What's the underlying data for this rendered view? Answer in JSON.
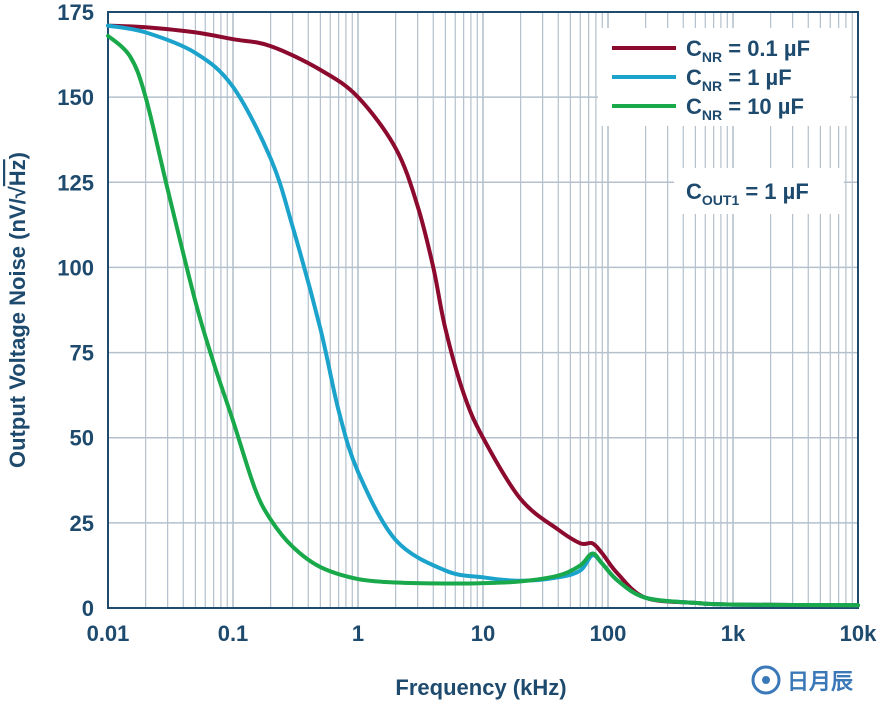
{
  "chart_data": {
    "type": "line",
    "title": "",
    "xlabel": "Frequency (kHz)",
    "ylabel_parts": {
      "main": "Output Voltage Noise (nV/",
      "radical": "√",
      "radicand": "Hz",
      "close": ")"
    },
    "xscale": "log",
    "xlim": [
      0.01,
      10000
    ],
    "ylim": [
      0,
      175
    ],
    "xticks": [
      0.01,
      0.1,
      1,
      10,
      100,
      1000,
      10000
    ],
    "xtick_labels": [
      "0.01",
      "0.1",
      "1",
      "10",
      "100",
      "1k",
      "10k"
    ],
    "yticks": [
      0,
      25,
      50,
      75,
      100,
      125,
      150,
      175
    ],
    "ytick_labels": [
      "0",
      "25",
      "50",
      "75",
      "100",
      "125",
      "150",
      "175"
    ],
    "grid": true,
    "legend_position": "top-right",
    "annotation": {
      "main": "C",
      "sub": "OUT1",
      "rest": " = 1 µF"
    },
    "series": [
      {
        "name": "CNR = 0.1 µF",
        "label_main": "C",
        "label_sub": "NR",
        "label_rest": " = 0.1 µF",
        "color": "#8b0a2e",
        "x": [
          0.01,
          0.02,
          0.05,
          0.1,
          0.2,
          0.5,
          1,
          2,
          3,
          4,
          5,
          7,
          10,
          20,
          40,
          60,
          75,
          90,
          120,
          200,
          500,
          1000,
          10000
        ],
        "y": [
          171,
          170.5,
          169,
          167,
          165,
          158,
          150,
          135,
          118,
          100,
          82,
          63,
          50,
          32,
          23,
          19,
          19,
          16,
          10,
          3,
          1.5,
          1,
          0.8
        ]
      },
      {
        "name": "CNR = 1 µF",
        "label_main": "C",
        "label_sub": "NR",
        "label_rest": " = 1 µF",
        "color": "#1ba3cc",
        "x": [
          0.01,
          0.02,
          0.05,
          0.1,
          0.2,
          0.3,
          0.5,
          0.7,
          1,
          2,
          5,
          10,
          20,
          40,
          60,
          75,
          90,
          120,
          200,
          500,
          1000,
          10000
        ],
        "y": [
          171,
          169,
          163,
          153,
          132,
          112,
          82,
          58,
          40,
          20,
          11,
          9,
          8,
          9,
          11,
          15.5,
          13,
          8,
          3,
          1.5,
          1,
          0.8
        ]
      },
      {
        "name": "CNR = 10 µF",
        "label_main": "C",
        "label_sub": "NR",
        "label_rest": " = 10 µF",
        "color": "#19a84a",
        "x": [
          0.01,
          0.015,
          0.02,
          0.03,
          0.05,
          0.07,
          0.1,
          0.15,
          0.2,
          0.3,
          0.5,
          1,
          2,
          5,
          10,
          20,
          40,
          60,
          75,
          90,
          120,
          200,
          500,
          1000,
          10000
        ],
        "y": [
          168,
          162,
          150,
          123,
          90,
          72,
          55,
          35,
          26,
          18,
          12,
          8.5,
          7.5,
          7.2,
          7.3,
          7.8,
          9.5,
          12.5,
          16,
          13,
          8,
          3,
          1.5,
          1,
          0.8
        ]
      }
    ]
  },
  "watermark": {
    "text": "日月辰"
  }
}
